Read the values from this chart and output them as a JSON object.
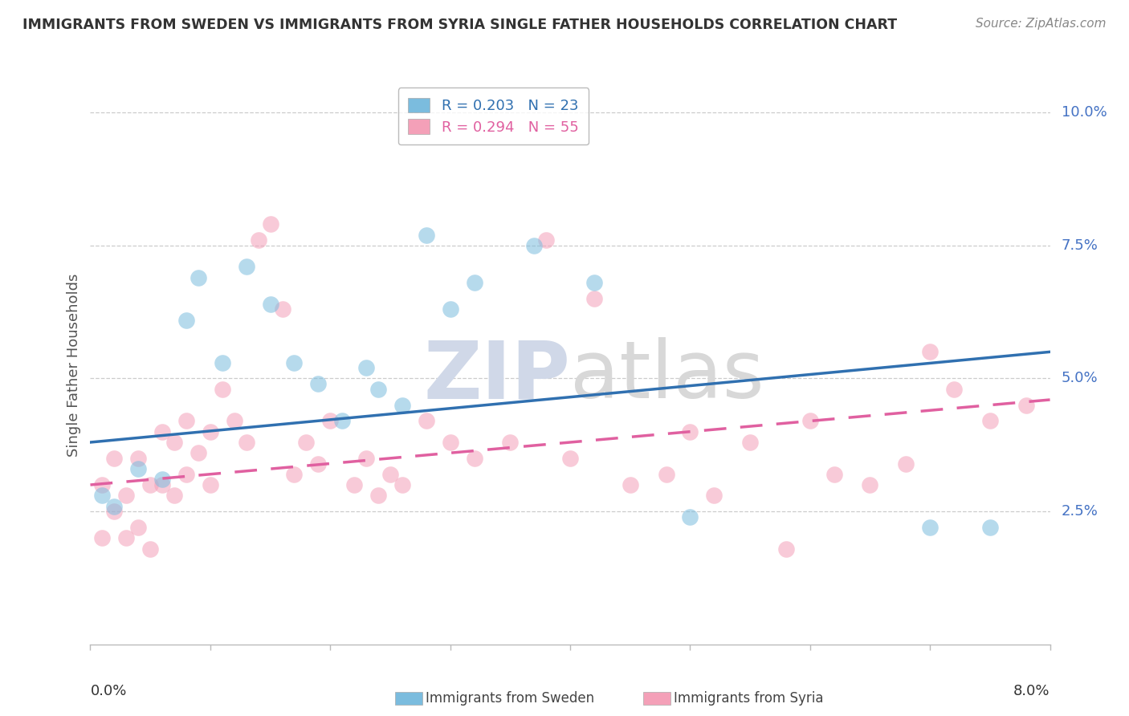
{
  "title": "IMMIGRANTS FROM SWEDEN VS IMMIGRANTS FROM SYRIA SINGLE FATHER HOUSEHOLDS CORRELATION CHART",
  "source": "Source: ZipAtlas.com",
  "ylabel": "Single Father Households",
  "legend1_label": "R = 0.203   N = 23",
  "legend2_label": "R = 0.294   N = 55",
  "sweden_color": "#7BBCDE",
  "syria_color": "#F4A0B8",
  "sweden_line_color": "#3070B0",
  "syria_line_color": "#E060A0",
  "sweden_scatter": [
    [
      0.001,
      0.028
    ],
    [
      0.002,
      0.026
    ],
    [
      0.004,
      0.033
    ],
    [
      0.006,
      0.031
    ],
    [
      0.008,
      0.061
    ],
    [
      0.009,
      0.069
    ],
    [
      0.011,
      0.053
    ],
    [
      0.013,
      0.071
    ],
    [
      0.015,
      0.064
    ],
    [
      0.017,
      0.053
    ],
    [
      0.019,
      0.049
    ],
    [
      0.021,
      0.042
    ],
    [
      0.023,
      0.052
    ],
    [
      0.024,
      0.048
    ],
    [
      0.026,
      0.045
    ],
    [
      0.028,
      0.077
    ],
    [
      0.03,
      0.063
    ],
    [
      0.032,
      0.068
    ],
    [
      0.037,
      0.075
    ],
    [
      0.042,
      0.068
    ],
    [
      0.05,
      0.024
    ],
    [
      0.07,
      0.022
    ],
    [
      0.075,
      0.022
    ]
  ],
  "syria_scatter": [
    [
      0.001,
      0.03
    ],
    [
      0.001,
      0.02
    ],
    [
      0.002,
      0.035
    ],
    [
      0.002,
      0.025
    ],
    [
      0.003,
      0.028
    ],
    [
      0.003,
      0.02
    ],
    [
      0.004,
      0.022
    ],
    [
      0.004,
      0.035
    ],
    [
      0.005,
      0.03
    ],
    [
      0.005,
      0.018
    ],
    [
      0.006,
      0.04
    ],
    [
      0.006,
      0.03
    ],
    [
      0.007,
      0.038
    ],
    [
      0.007,
      0.028
    ],
    [
      0.008,
      0.032
    ],
    [
      0.008,
      0.042
    ],
    [
      0.009,
      0.036
    ],
    [
      0.01,
      0.04
    ],
    [
      0.01,
      0.03
    ],
    [
      0.011,
      0.048
    ],
    [
      0.012,
      0.042
    ],
    [
      0.013,
      0.038
    ],
    [
      0.014,
      0.076
    ],
    [
      0.015,
      0.079
    ],
    [
      0.016,
      0.063
    ],
    [
      0.017,
      0.032
    ],
    [
      0.018,
      0.038
    ],
    [
      0.019,
      0.034
    ],
    [
      0.02,
      0.042
    ],
    [
      0.022,
      0.03
    ],
    [
      0.023,
      0.035
    ],
    [
      0.024,
      0.028
    ],
    [
      0.025,
      0.032
    ],
    [
      0.026,
      0.03
    ],
    [
      0.028,
      0.042
    ],
    [
      0.03,
      0.038
    ],
    [
      0.032,
      0.035
    ],
    [
      0.035,
      0.038
    ],
    [
      0.038,
      0.076
    ],
    [
      0.04,
      0.035
    ],
    [
      0.042,
      0.065
    ],
    [
      0.045,
      0.03
    ],
    [
      0.048,
      0.032
    ],
    [
      0.05,
      0.04
    ],
    [
      0.052,
      0.028
    ],
    [
      0.055,
      0.038
    ],
    [
      0.058,
      0.018
    ],
    [
      0.06,
      0.042
    ],
    [
      0.062,
      0.032
    ],
    [
      0.065,
      0.03
    ],
    [
      0.068,
      0.034
    ],
    [
      0.07,
      0.055
    ],
    [
      0.072,
      0.048
    ],
    [
      0.075,
      0.042
    ],
    [
      0.078,
      0.045
    ]
  ],
  "xlim": [
    0.0,
    0.08
  ],
  "ylim": [
    0.0,
    0.105
  ],
  "ytick_vals": [
    0.025,
    0.05,
    0.075,
    0.1
  ],
  "ytick_labels": [
    "2.5%",
    "5.0%",
    "7.5%",
    "10.0%"
  ],
  "sweden_line_y0": 0.038,
  "sweden_line_y1": 0.055,
  "syria_line_y0": 0.03,
  "syria_line_y1": 0.046,
  "sweden_R": 0.203,
  "sweden_N": 23,
  "syria_R": 0.294,
  "syria_N": 55,
  "label_sweden": "Immigrants from Sweden",
  "label_syria": "Immigrants from Syria"
}
